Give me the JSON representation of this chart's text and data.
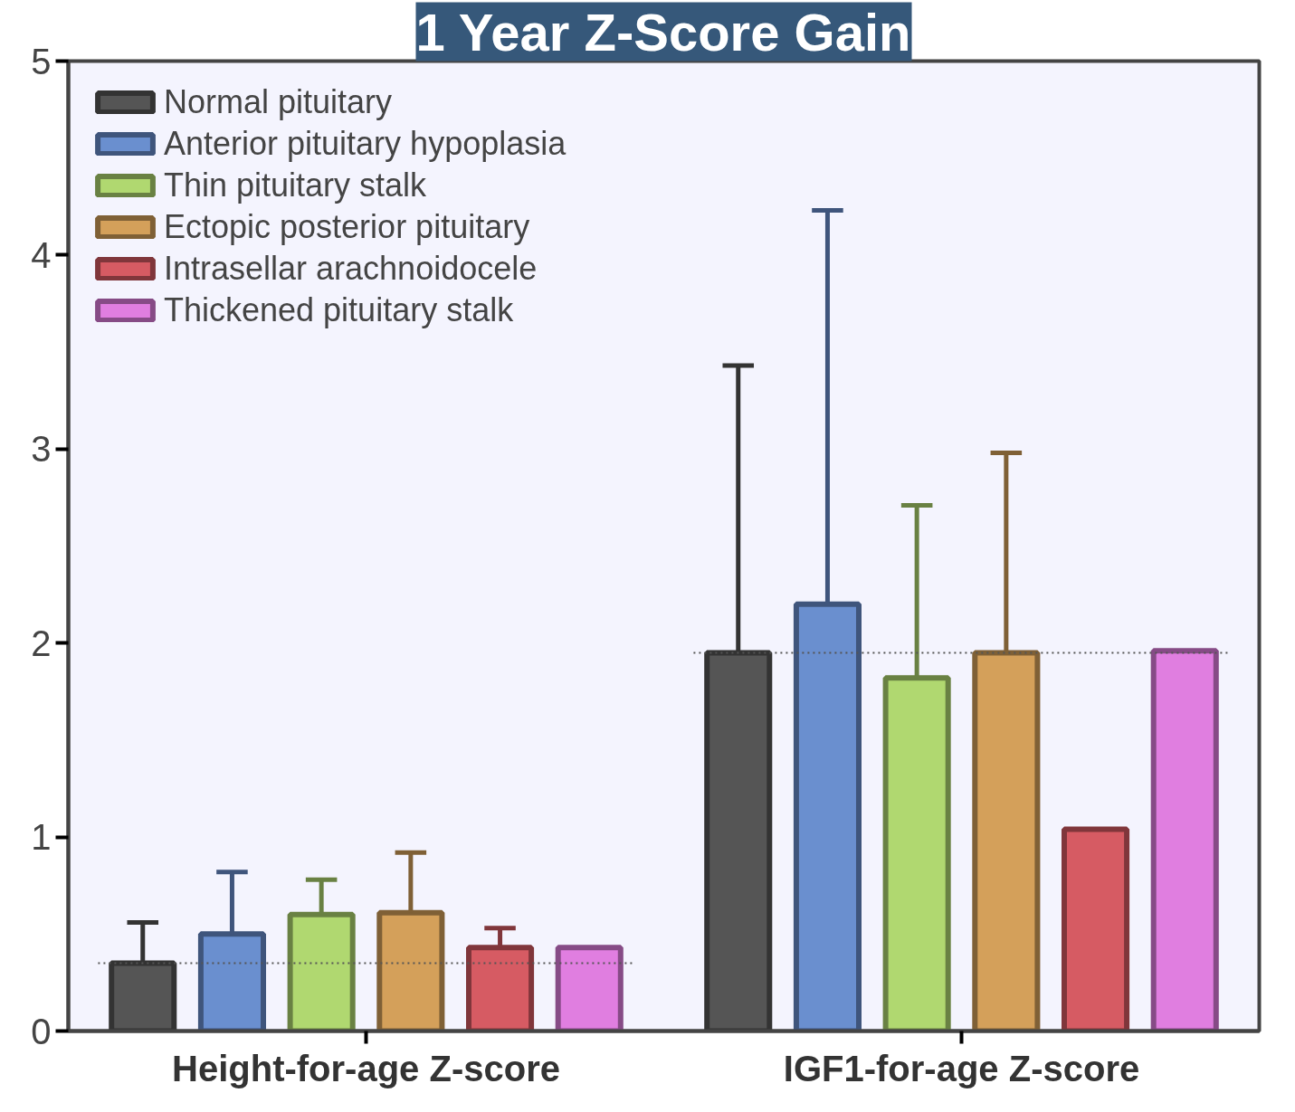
{
  "chart_data": {
    "type": "bar",
    "title": "1 Year Z-Score Gain",
    "categories": [
      "Height-for-age Z-score",
      "IGF1-for-age Z-score"
    ],
    "series": [
      {
        "name": "Normal pituitary",
        "color": "#555555",
        "values": [
          0.35,
          1.95
        ],
        "errors": [
          [
            0.35,
            0.56
          ],
          [
            1.95,
            3.43
          ]
        ]
      },
      {
        "name": "Anterior pituitary hypoplasia",
        "color": "#6a8fcf",
        "values": [
          0.5,
          2.2
        ],
        "errors": [
          [
            0.5,
            0.82
          ],
          [
            2.2,
            4.23
          ]
        ]
      },
      {
        "name": "Thin pituitary stalk",
        "color": "#b0d870",
        "values": [
          0.6,
          1.82
        ],
        "errors": [
          [
            0.6,
            0.78
          ],
          [
            1.82,
            2.71
          ]
        ]
      },
      {
        "name": "Ectopic posterior pituitary",
        "color": "#d4a05a",
        "values": [
          0.61,
          1.95
        ],
        "errors": [
          [
            0.61,
            0.92
          ],
          [
            1.95,
            2.98
          ]
        ]
      },
      {
        "name": "Intrasellar arachnoidocele",
        "color": "#d65b63",
        "values": [
          0.43,
          1.04
        ],
        "errors": [
          [
            0.43,
            0.53
          ],
          null
        ]
      },
      {
        "name": "Thickened pituitary stalk",
        "color": "#e07ee0",
        "values": [
          0.43,
          1.96
        ]
      }
    ],
    "ref_lines": [
      {
        "axis": "y",
        "value": 0.35,
        "color": "#555555",
        "line_style": "dotted"
      },
      {
        "axis": "y",
        "value": 1.95,
        "color": "#555555",
        "line_style": "dotted"
      }
    ],
    "ylim": [
      0,
      5
    ],
    "yticks": [
      0,
      1,
      2,
      3,
      4,
      5
    ],
    "grid": false,
    "legend": "top left"
  }
}
